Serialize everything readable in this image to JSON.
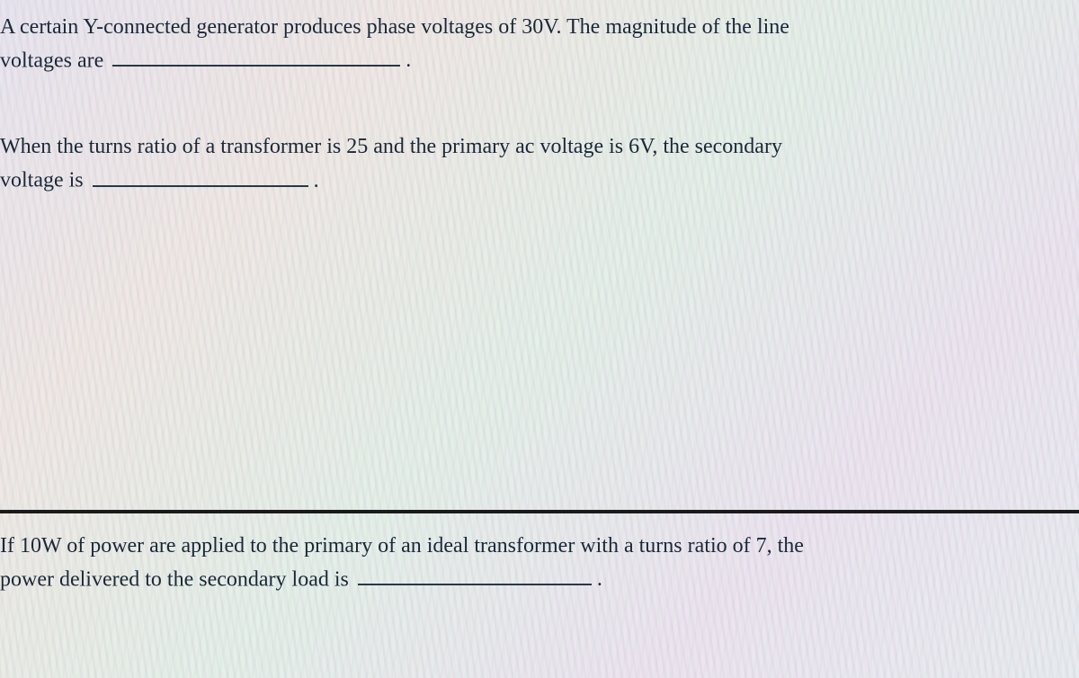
{
  "questions": {
    "q1": {
      "line1": "A certain Y-connected generator produces phase voltages of 30V. The magnitude of the line",
      "line2_before": "voltages are",
      "line2_after": "."
    },
    "q2": {
      "line1": "When the turns ratio of a transformer is 25 and the primary ac voltage is 6V, the secondary",
      "line2_before": "voltage is",
      "line2_after": "."
    },
    "q3": {
      "line1": "If 10W of power are applied to the primary of an ideal transformer with a turns ratio of 7, the",
      "line2_before": "power delivered to the secondary load is",
      "line2_after": "."
    }
  },
  "styling": {
    "text_color": "#1a2838",
    "font_size_pt": 18,
    "blank_border_color": "#2a3848",
    "divider_color": "#1a1a1a",
    "background_base": "#e8e8ec"
  }
}
